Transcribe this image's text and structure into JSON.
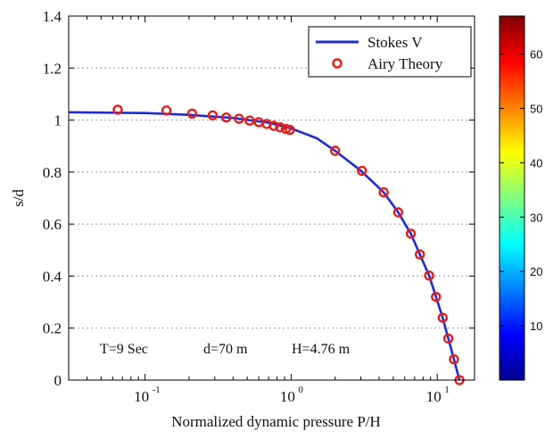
{
  "chart_data": {
    "type": "line",
    "xlabel": "Normalized dynamic pressure P/H",
    "ylabel": "s/d",
    "xscale": "log",
    "xlim": [
      0.03,
      18
    ],
    "ylim": [
      0,
      1.4
    ],
    "y_ticks": [
      "0",
      "0.2",
      "0.4",
      "0.6",
      "0.8",
      "1",
      "1.2",
      "1.4"
    ],
    "x_ticks": [
      {
        "base": "10",
        "exp": "-1",
        "value": 0.1
      },
      {
        "base": "10",
        "exp": "0",
        "value": 1
      },
      {
        "base": "10",
        "exp": "1",
        "value": 10
      }
    ],
    "grid": "horizontal dotted",
    "legend_position": "top-right",
    "annotations": {
      "period": "T=9 Sec",
      "depth": "d=70 m",
      "height": "H=4.76 m"
    },
    "series": [
      {
        "name": "Stokes V",
        "style": "line",
        "color": "#1f2bd6",
        "points": [
          [
            0.03,
            1.03
          ],
          [
            0.1,
            1.027
          ],
          [
            0.2,
            1.02
          ],
          [
            0.4,
            1.008
          ],
          [
            0.7,
            0.99
          ],
          [
            1.0,
            0.968
          ],
          [
            1.5,
            0.93
          ],
          [
            2.0,
            0.882
          ],
          [
            3.0,
            0.805
          ],
          [
            4.3,
            0.722
          ],
          [
            5.4,
            0.645
          ],
          [
            6.6,
            0.563
          ],
          [
            7.6,
            0.483
          ],
          [
            8.8,
            0.402
          ],
          [
            9.8,
            0.32
          ],
          [
            10.9,
            0.24
          ],
          [
            11.9,
            0.16
          ],
          [
            13.0,
            0.08
          ],
          [
            14.2,
            0.0
          ]
        ]
      },
      {
        "name": "Airy Theory",
        "style": "markers",
        "color": "#e0201b",
        "points": [
          [
            0.065,
            1.04
          ],
          [
            0.14,
            1.037
          ],
          [
            0.21,
            1.025
          ],
          [
            0.29,
            1.018
          ],
          [
            0.36,
            1.01
          ],
          [
            0.44,
            1.005
          ],
          [
            0.52,
            0.998
          ],
          [
            0.6,
            0.992
          ],
          [
            0.68,
            0.985
          ],
          [
            0.76,
            0.978
          ],
          [
            0.84,
            0.972
          ],
          [
            0.92,
            0.966
          ],
          [
            0.98,
            0.962
          ],
          [
            2.0,
            0.882
          ],
          [
            3.05,
            0.805
          ],
          [
            4.3,
            0.722
          ],
          [
            5.4,
            0.645
          ],
          [
            6.6,
            0.563
          ],
          [
            7.6,
            0.483
          ],
          [
            8.8,
            0.402
          ],
          [
            9.8,
            0.32
          ],
          [
            10.9,
            0.24
          ],
          [
            11.9,
            0.16
          ],
          [
            13.0,
            0.08
          ],
          [
            14.2,
            0.0
          ]
        ]
      }
    ],
    "colorbar": {
      "ticks": [
        "10",
        "20",
        "30",
        "40",
        "50",
        "60"
      ],
      "tick_values": [
        10,
        20,
        30,
        40,
        50,
        60
      ],
      "range": [
        0,
        67
      ],
      "colormap": [
        "#00008f",
        "#0000ff",
        "#0080ff",
        "#00ffff",
        "#80ff80",
        "#ffff00",
        "#ff8000",
        "#ff0000",
        "#800000"
      ]
    }
  }
}
